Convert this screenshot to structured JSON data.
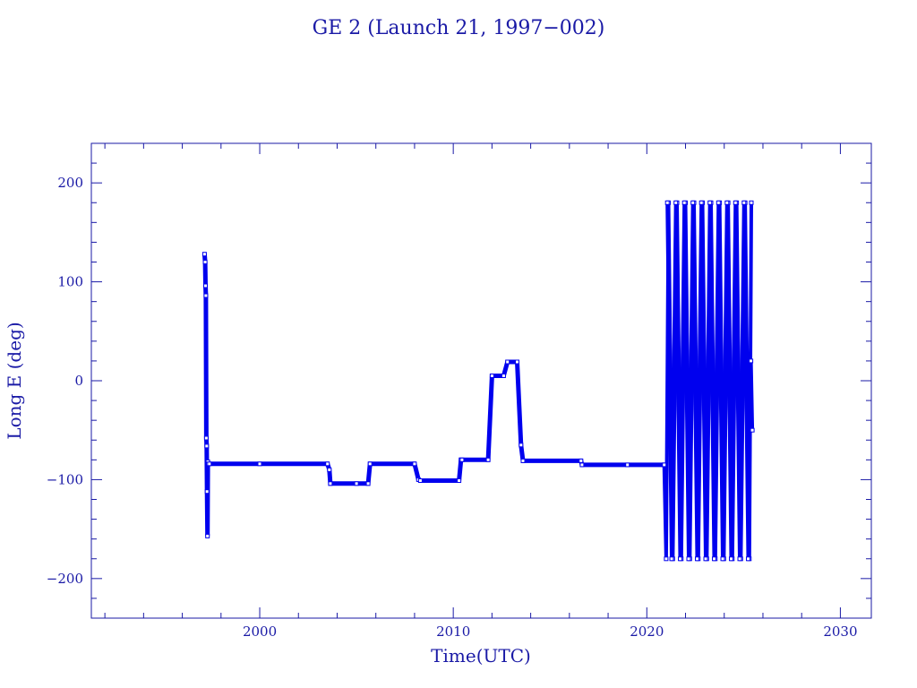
{
  "chart_data": {
    "type": "line",
    "title": "GE 2 (Launch 21, 1997−002)",
    "xlabel": "Time(UTC)",
    "ylabel": "Long E (deg)",
    "xlim": [
      1991.3,
      2031.6
    ],
    "ylim": [
      -240,
      240
    ],
    "x_ticks": [
      2000,
      2010,
      2020,
      2030
    ],
    "x_tick_labels": [
      "2000",
      "2010",
      "2020",
      "2030"
    ],
    "y_ticks": [
      -200,
      -100,
      0,
      100,
      200
    ],
    "y_tick_labels": [
      "−200",
      "−100",
      "0",
      "100",
      "200"
    ],
    "grid": false,
    "series": [
      {
        "color": "#0000ee",
        "x": [
          1997.15,
          1997.18,
          1997.2,
          1997.22,
          1997.24,
          1997.26,
          1997.28,
          1997.3,
          1997.32,
          1997.34,
          1997.4,
          2000.0,
          2003.5,
          2003.6,
          2003.65,
          2005.0,
          2005.6,
          2005.7,
          2008.0,
          2008.2,
          2008.3,
          2010.3,
          2010.4,
          2010.45,
          2011.8,
          2012.0,
          2012.6,
          2012.8,
          2013.3,
          2013.5,
          2013.6,
          2016.6,
          2016.65,
          2019.0,
          2020.9
        ],
        "values": [
          128,
          120,
          96,
          86,
          -58,
          -66,
          -112,
          -157,
          -82,
          -84,
          -84,
          -84,
          -84,
          -90,
          -104,
          -104,
          -104,
          -84,
          -84,
          -100,
          -101,
          -101,
          -80,
          -80,
          -80,
          5,
          5,
          19,
          19,
          -65,
          -81,
          -81,
          -85,
          -85,
          -85
        ]
      },
      {
        "color": "#0000ee",
        "x": [
          2020.9,
          2021.0,
          2021.12,
          2021.34,
          2021.56,
          2021.78,
          2022.0,
          2022.22,
          2022.44,
          2022.66,
          2022.88,
          2023.1,
          2023.32,
          2023.54,
          2023.76,
          2023.98,
          2024.2,
          2024.42,
          2024.64,
          2024.86,
          2025.08,
          2025.3,
          2025.4
        ],
        "values": [
          -85,
          -180,
          180,
          -180,
          180,
          -180,
          180,
          -180,
          180,
          -180,
          180,
          -180,
          180,
          -180,
          180,
          -180,
          180,
          -180,
          180,
          -180,
          180,
          -180,
          180
        ]
      },
      {
        "color": "#0000ee",
        "x": [
          2021.06,
          2021.28,
          2021.5,
          2021.72,
          2021.94,
          2022.16,
          2022.38,
          2022.6,
          2022.82,
          2023.04,
          2023.26,
          2023.48,
          2023.7,
          2023.92,
          2024.14,
          2024.36,
          2024.58,
          2024.8,
          2025.02,
          2025.24,
          2025.38,
          2025.45
        ],
        "values": [
          180,
          -180,
          180,
          -180,
          180,
          -180,
          180,
          -180,
          180,
          -180,
          180,
          -180,
          180,
          -180,
          180,
          -180,
          180,
          -180,
          180,
          -180,
          20,
          -50
        ]
      }
    ]
  }
}
